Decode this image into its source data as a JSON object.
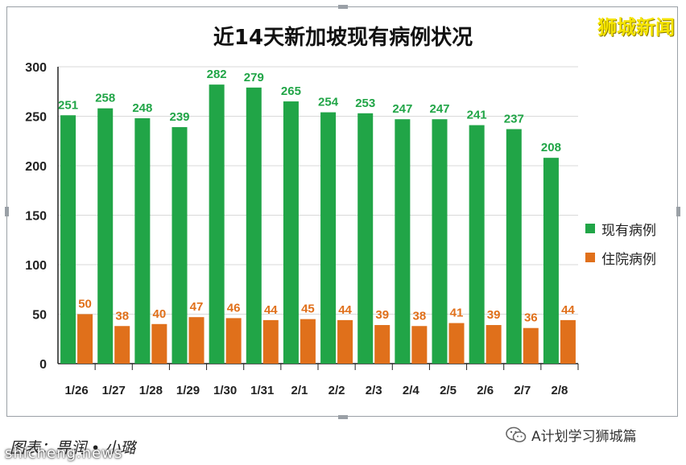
{
  "header": {
    "title": "近14天新加坡现有病例状况",
    "watermark": "狮城新闻"
  },
  "footer": {
    "credit": "图表：畀润 • 小璐",
    "source": "shicheng.news",
    "wechat_account": "A计划学习狮城篇"
  },
  "colors": {
    "current_cases": "#21a547",
    "hospitalized": "#e0701b"
  },
  "chart_data": {
    "type": "bar",
    "title": "近14天新加坡现有病例状况",
    "categories": [
      "1/26",
      "1/27",
      "1/28",
      "1/29",
      "1/30",
      "1/31",
      "2/1",
      "2/2",
      "2/3",
      "2/4",
      "2/5",
      "2/6",
      "2/7",
      "2/8"
    ],
    "series": [
      {
        "name": "现有病例",
        "values": [
          251,
          258,
          248,
          239,
          282,
          279,
          265,
          254,
          253,
          247,
          247,
          241,
          237,
          208
        ]
      },
      {
        "name": "住院病例",
        "values": [
          50,
          38,
          40,
          47,
          46,
          44,
          45,
          44,
          39,
          38,
          41,
          39,
          36,
          44
        ]
      }
    ],
    "yticks": [
      0,
      50,
      100,
      150,
      200,
      250,
      300
    ],
    "ylim": [
      0,
      300
    ],
    "grid": true,
    "legend_position": "right"
  }
}
